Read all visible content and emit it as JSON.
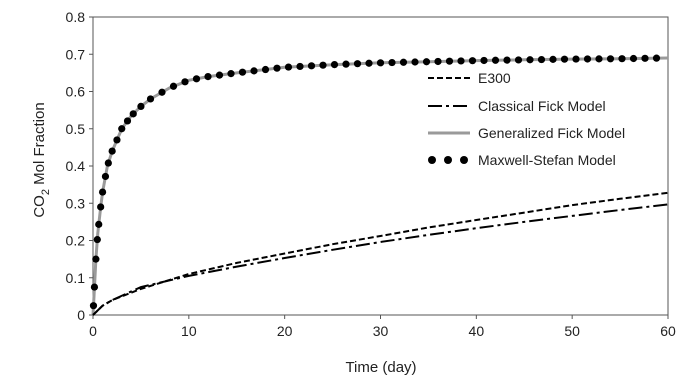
{
  "chart_data": {
    "type": "line",
    "title": "",
    "xlabel": "Time (day)",
    "ylabel": {
      "main": "CO",
      "sub": "2",
      "rest": " Mol Fraction"
    },
    "xlim": [
      0,
      60
    ],
    "ylim": [
      0,
      0.8
    ],
    "xticks": [
      "0",
      "10",
      "20",
      "30",
      "40",
      "50",
      "60"
    ],
    "yticks": [
      "0",
      "0.1",
      "0.2",
      "0.3",
      "0.4",
      "0.5",
      "0.6",
      "0.7",
      "0.8"
    ],
    "grid": false,
    "legend_position": "right-middle",
    "series": [
      {
        "name": "E300",
        "style": "dashed",
        "color": "#000000",
        "x": [
          0,
          1,
          2,
          5,
          10,
          15,
          20,
          25,
          30,
          35,
          40,
          45,
          50,
          55,
          60
        ],
        "y": [
          0,
          0.025,
          0.04,
          0.07,
          0.11,
          0.14,
          0.165,
          0.19,
          0.212,
          0.235,
          0.255,
          0.275,
          0.295,
          0.312,
          0.328
        ]
      },
      {
        "name": "Classical Fick Model",
        "style": "dashdot",
        "color": "#000000",
        "x": [
          0,
          1,
          2,
          5,
          10,
          15,
          20,
          25,
          30,
          35,
          40,
          45,
          50,
          55,
          60
        ],
        "y": [
          0,
          0.025,
          0.04,
          0.075,
          0.105,
          0.13,
          0.153,
          0.175,
          0.196,
          0.215,
          0.233,
          0.25,
          0.266,
          0.282,
          0.297
        ]
      },
      {
        "name": "Generalized Fick Model",
        "style": "solid",
        "color": "#9a9a9a",
        "x": [
          0,
          0.1,
          0.3,
          0.5,
          0.8,
          1,
          1.5,
          2,
          3,
          4,
          5,
          6,
          8,
          10,
          12,
          15,
          20,
          25,
          30,
          35,
          40,
          45,
          50,
          55,
          60
        ],
        "y": [
          0,
          0.05,
          0.15,
          0.22,
          0.29,
          0.33,
          0.4,
          0.44,
          0.5,
          0.535,
          0.56,
          0.58,
          0.61,
          0.63,
          0.64,
          0.65,
          0.665,
          0.672,
          0.677,
          0.68,
          0.683,
          0.685,
          0.687,
          0.688,
          0.69
        ]
      },
      {
        "name": "Maxwell-Stefan Model",
        "style": "dotted-markers",
        "color": "#000000",
        "x": [
          0,
          0.1,
          0.3,
          0.5,
          0.8,
          1,
          1.5,
          2,
          3,
          4,
          5,
          6,
          8,
          10,
          12,
          15,
          20,
          25,
          30,
          35,
          40,
          45,
          50,
          55,
          60
        ],
        "y": [
          0,
          0.05,
          0.15,
          0.22,
          0.29,
          0.33,
          0.4,
          0.44,
          0.5,
          0.535,
          0.56,
          0.58,
          0.61,
          0.63,
          0.64,
          0.65,
          0.665,
          0.672,
          0.677,
          0.68,
          0.683,
          0.685,
          0.687,
          0.688,
          0.69
        ]
      }
    ]
  }
}
